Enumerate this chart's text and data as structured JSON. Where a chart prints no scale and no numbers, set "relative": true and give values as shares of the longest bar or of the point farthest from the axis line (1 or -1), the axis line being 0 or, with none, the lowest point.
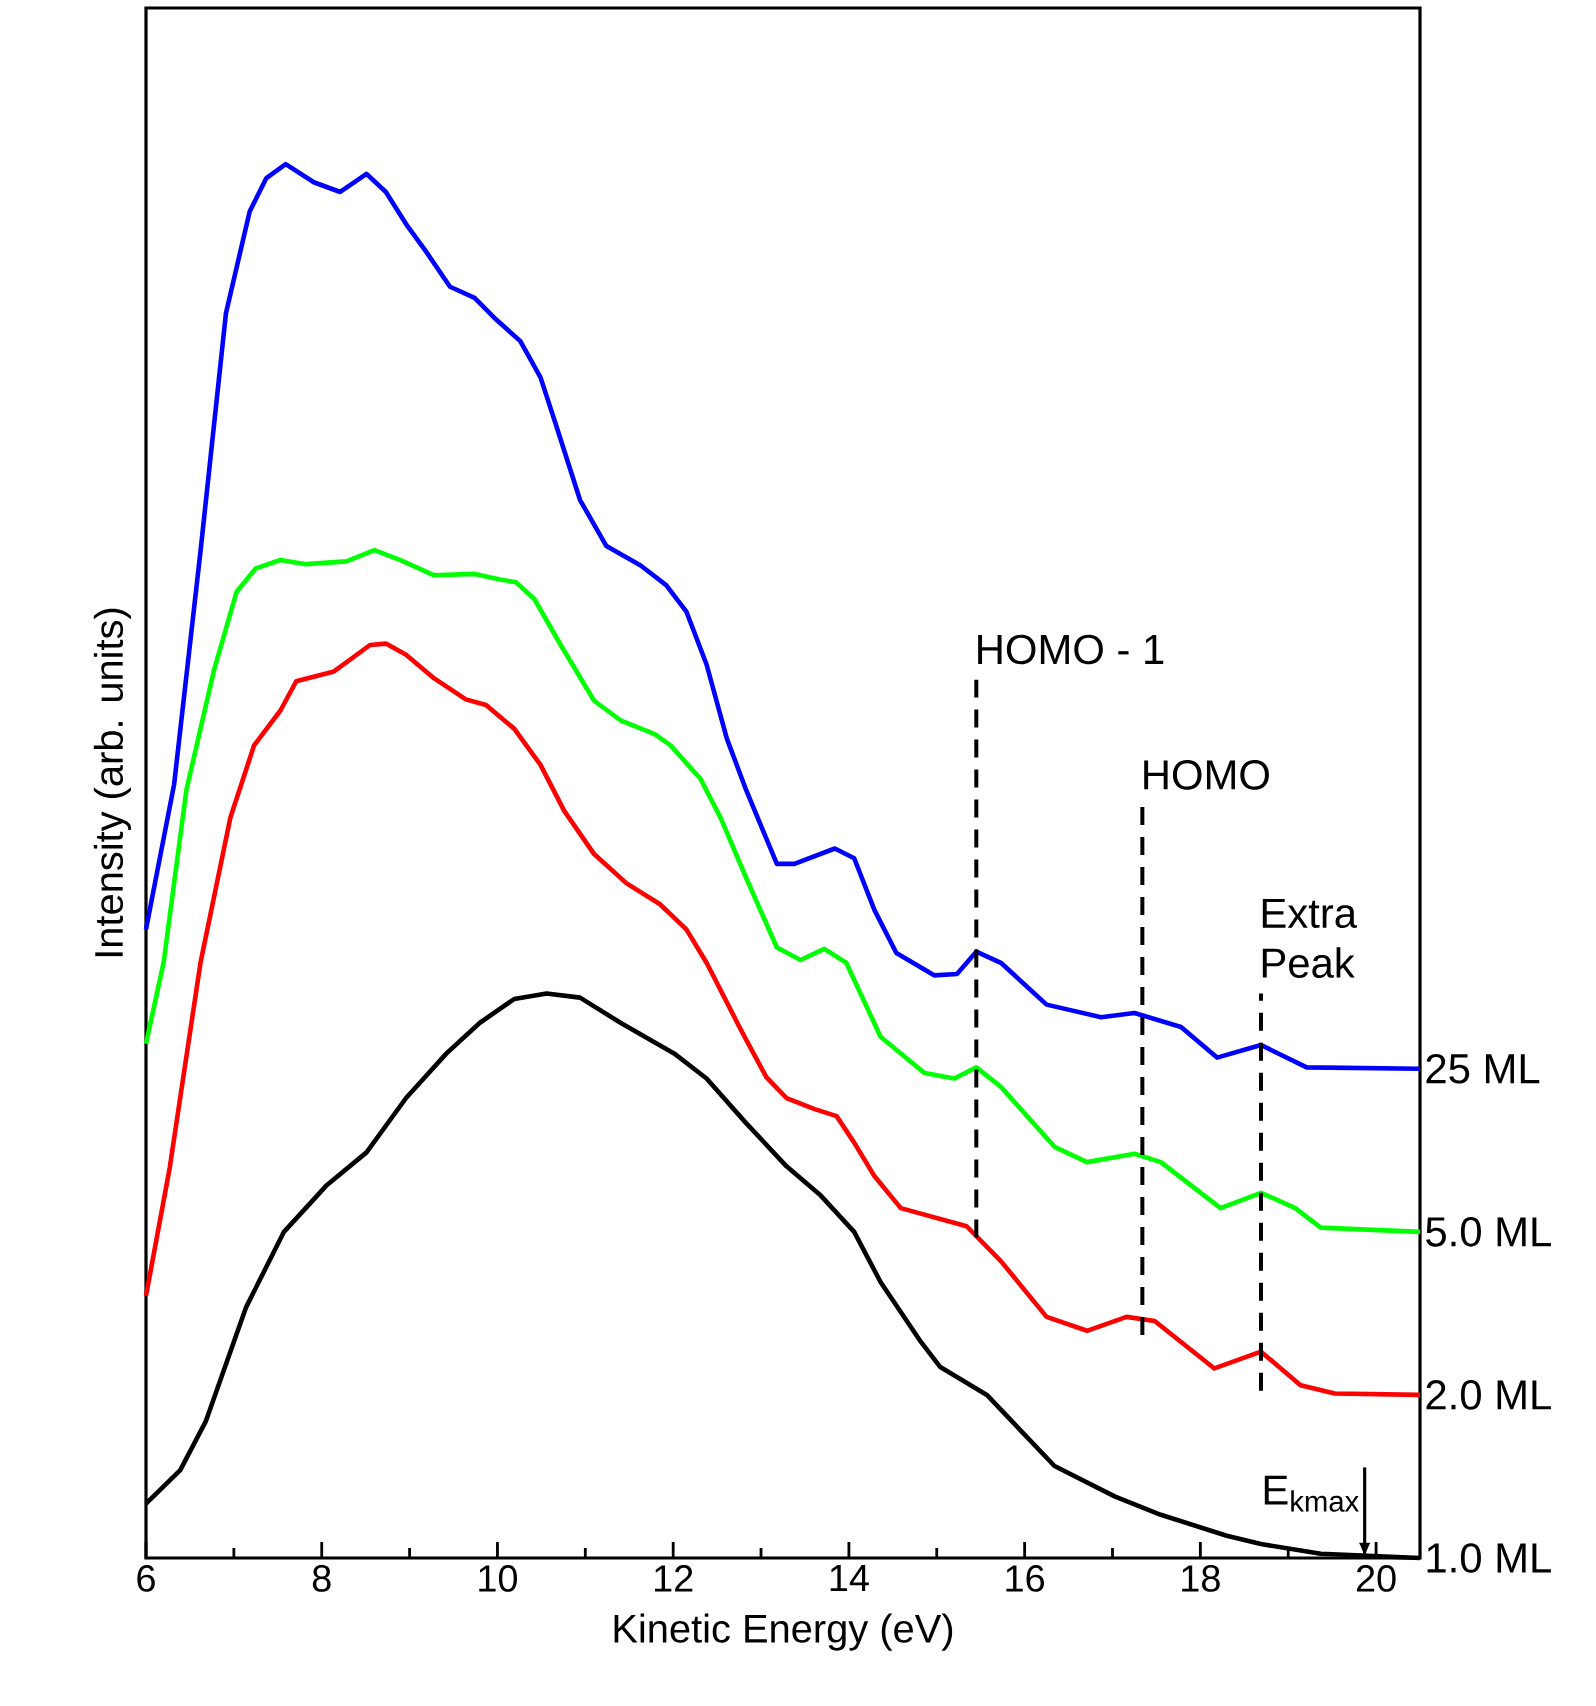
{
  "chart_data": {
    "type": "line",
    "relative": true,
    "xlabel": "Kinetic Energy (eV)",
    "ylabel": "Intensity (arb. units)",
    "xlim": [
      6,
      20.5
    ],
    "xticks": [
      6,
      8,
      10,
      12,
      14,
      16,
      18,
      20
    ],
    "marker": "none",
    "line_style": "solid",
    "series": [
      {
        "name": "25 ML",
        "color": "#0000ff",
        "x": [
          6.0,
          6.32,
          6.62,
          6.91,
          7.18,
          7.37,
          7.59,
          7.91,
          8.21,
          8.51,
          8.73,
          8.96,
          9.19,
          9.46,
          9.74,
          9.96,
          10.26,
          10.49,
          10.65,
          10.94,
          11.24,
          11.63,
          11.92,
          12.15,
          12.38,
          12.61,
          12.83,
          13.18,
          13.38,
          13.84,
          14.06,
          14.29,
          14.54,
          14.97,
          15.23,
          15.45,
          15.73,
          16.25,
          16.87,
          17.25,
          17.78,
          18.19,
          18.69,
          19.21,
          20.5
        ],
        "values": [
          0.451,
          0.555,
          0.722,
          0.893,
          0.966,
          0.99,
          1.0,
          0.987,
          0.98,
          0.993,
          0.98,
          0.957,
          0.937,
          0.912,
          0.904,
          0.89,
          0.873,
          0.847,
          0.816,
          0.759,
          0.726,
          0.712,
          0.698,
          0.679,
          0.641,
          0.588,
          0.551,
          0.498,
          0.498,
          0.509,
          0.502,
          0.465,
          0.434,
          0.418,
          0.419,
          0.435,
          0.427,
          0.397,
          0.388,
          0.391,
          0.381,
          0.359,
          0.368,
          0.352,
          0.351
        ]
      },
      {
        "name": "5.0 ML",
        "color": "#00ff00",
        "x": [
          6.0,
          6.2,
          6.46,
          6.77,
          7.03,
          7.25,
          7.53,
          7.82,
          8.28,
          8.6,
          8.89,
          9.28,
          9.74,
          10.03,
          10.21,
          10.42,
          10.72,
          11.1,
          11.4,
          11.79,
          11.97,
          12.31,
          12.54,
          12.83,
          13.18,
          13.45,
          13.72,
          13.97,
          14.36,
          14.86,
          15.2,
          15.45,
          15.73,
          16.34,
          16.71,
          17.25,
          17.55,
          18.23,
          18.69,
          19.08,
          19.37,
          20.5
        ],
        "values": [
          0.369,
          0.427,
          0.551,
          0.636,
          0.693,
          0.71,
          0.716,
          0.713,
          0.715,
          0.723,
          0.716,
          0.705,
          0.706,
          0.702,
          0.7,
          0.688,
          0.655,
          0.615,
          0.601,
          0.591,
          0.583,
          0.559,
          0.531,
          0.488,
          0.438,
          0.429,
          0.437,
          0.427,
          0.374,
          0.348,
          0.344,
          0.352,
          0.338,
          0.295,
          0.284,
          0.29,
          0.284,
          0.251,
          0.262,
          0.251,
          0.237,
          0.234
        ]
      },
      {
        "name": "2.0 ML",
        "color": "#ff0000",
        "x": [
          6.0,
          6.27,
          6.62,
          6.96,
          7.23,
          7.53,
          7.71,
          8.14,
          8.55,
          8.73,
          8.96,
          9.28,
          9.64,
          9.87,
          10.19,
          10.49,
          10.76,
          11.1,
          11.47,
          11.85,
          12.15,
          12.38,
          12.77,
          13.06,
          13.29,
          13.61,
          13.86,
          14.06,
          14.29,
          14.59,
          15.34,
          15.73,
          16.25,
          16.71,
          17.16,
          17.48,
          18.16,
          18.69,
          19.14,
          19.53,
          20.5
        ],
        "values": [
          0.188,
          0.28,
          0.427,
          0.531,
          0.583,
          0.608,
          0.629,
          0.636,
          0.655,
          0.656,
          0.648,
          0.631,
          0.616,
          0.612,
          0.595,
          0.569,
          0.536,
          0.505,
          0.484,
          0.469,
          0.451,
          0.427,
          0.379,
          0.345,
          0.33,
          0.322,
          0.317,
          0.298,
          0.274,
          0.251,
          0.238,
          0.213,
          0.173,
          0.163,
          0.173,
          0.17,
          0.136,
          0.148,
          0.124,
          0.118,
          0.117
        ]
      },
      {
        "name": "1.0 ML",
        "color": "#000000",
        "x": [
          6.0,
          6.39,
          6.68,
          7.14,
          7.57,
          8.05,
          8.51,
          8.96,
          9.42,
          9.8,
          10.19,
          10.56,
          10.94,
          11.4,
          12.01,
          12.38,
          12.83,
          13.29,
          13.68,
          14.06,
          14.36,
          14.82,
          15.04,
          15.57,
          16.34,
          17.03,
          17.55,
          18.3,
          18.69,
          19.37,
          20.5
        ],
        "values": [
          0.039,
          0.063,
          0.098,
          0.18,
          0.234,
          0.267,
          0.291,
          0.33,
          0.362,
          0.384,
          0.401,
          0.405,
          0.402,
          0.384,
          0.362,
          0.344,
          0.312,
          0.281,
          0.26,
          0.234,
          0.198,
          0.155,
          0.137,
          0.117,
          0.066,
          0.044,
          0.031,
          0.016,
          0.01,
          0.003,
          0.0
        ]
      }
    ],
    "ref_lines": [
      {
        "axis": "x",
        "value": 15.45,
        "label": "HOMO - 1",
        "line_style": "dashed",
        "color": "#000000"
      },
      {
        "axis": "x",
        "value": 17.34,
        "label": "HOMO",
        "line_style": "dashed",
        "color": "#000000"
      },
      {
        "axis": "x",
        "value": 18.69,
        "label": "Extra Peak",
        "line_style": "dashed",
        "color": "#000000"
      }
    ],
    "annotations": [
      {
        "text": "E$_{kmax}$",
        "x": 19.87,
        "y": 0
      }
    ]
  }
}
